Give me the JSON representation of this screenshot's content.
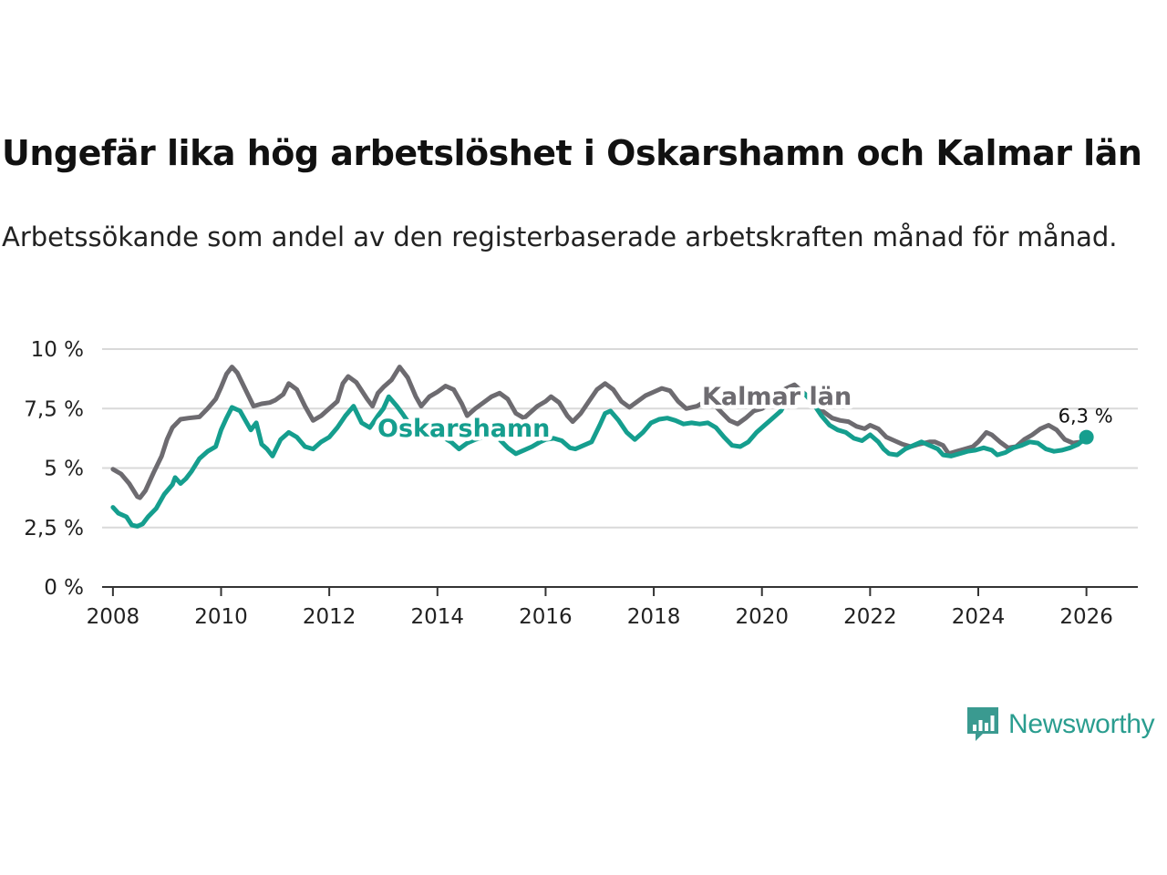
{
  "title": "Ungefär lika hög arbetslöshet i Oskarshamn och Kalmar län",
  "subtitle": "Arbetssökande som andel av den registerbaserade arbetskraften månad för månad.",
  "brand": "Newsworthy",
  "colors": {
    "kalmar": "#6d6b70",
    "oskarshamn": "#159e8e",
    "grid": "#d9d9d9",
    "axis": "#333333"
  },
  "chart_data": {
    "type": "line",
    "xlabel": "",
    "ylabel": "",
    "xlim": [
      2007.8,
      2026.95
    ],
    "ylim": [
      0,
      10
    ],
    "x_ticks": [
      2008,
      2010,
      2012,
      2014,
      2016,
      2018,
      2020,
      2022,
      2024,
      2026
    ],
    "x_tick_labels": [
      "2008",
      "2010",
      "2012",
      "2014",
      "2016",
      "2018",
      "2020",
      "2022",
      "2024",
      "2026"
    ],
    "y_ticks": [
      0,
      2.5,
      5,
      7.5,
      10
    ],
    "y_tick_labels": [
      "0 %",
      "2,5 %",
      "5 %",
      "7,5 %",
      "10 %"
    ],
    "grid": true,
    "last_value_label": "6,3 %",
    "series": [
      {
        "name": "Kalmar län",
        "label": "Kalmar län",
        "points": [
          [
            2008.0,
            4.95
          ],
          [
            2008.15,
            4.75
          ],
          [
            2008.3,
            4.35
          ],
          [
            2008.45,
            3.8
          ],
          [
            2008.5,
            3.75
          ],
          [
            2008.6,
            4.05
          ],
          [
            2008.75,
            4.8
          ],
          [
            2008.9,
            5.5
          ],
          [
            2009.0,
            6.2
          ],
          [
            2009.1,
            6.7
          ],
          [
            2009.25,
            7.05
          ],
          [
            2009.4,
            7.1
          ],
          [
            2009.6,
            7.15
          ],
          [
            2009.75,
            7.5
          ],
          [
            2009.9,
            7.9
          ],
          [
            2010.0,
            8.4
          ],
          [
            2010.1,
            8.95
          ],
          [
            2010.2,
            9.25
          ],
          [
            2010.3,
            9.0
          ],
          [
            2010.45,
            8.3
          ],
          [
            2010.6,
            7.6
          ],
          [
            2010.75,
            7.7
          ],
          [
            2010.9,
            7.75
          ],
          [
            2011.0,
            7.85
          ],
          [
            2011.15,
            8.1
          ],
          [
            2011.25,
            8.55
          ],
          [
            2011.4,
            8.3
          ],
          [
            2011.55,
            7.6
          ],
          [
            2011.7,
            7.0
          ],
          [
            2011.85,
            7.2
          ],
          [
            2012.0,
            7.5
          ],
          [
            2012.15,
            7.8
          ],
          [
            2012.25,
            8.55
          ],
          [
            2012.35,
            8.85
          ],
          [
            2012.5,
            8.6
          ],
          [
            2012.7,
            7.9
          ],
          [
            2012.8,
            7.6
          ],
          [
            2012.9,
            8.15
          ],
          [
            2013.0,
            8.4
          ],
          [
            2013.15,
            8.7
          ],
          [
            2013.3,
            9.25
          ],
          [
            2013.45,
            8.8
          ],
          [
            2013.6,
            8.0
          ],
          [
            2013.7,
            7.6
          ],
          [
            2013.85,
            8.0
          ],
          [
            2014.0,
            8.2
          ],
          [
            2014.15,
            8.45
          ],
          [
            2014.3,
            8.3
          ],
          [
            2014.45,
            7.7
          ],
          [
            2014.55,
            7.2
          ],
          [
            2014.7,
            7.5
          ],
          [
            2014.85,
            7.75
          ],
          [
            2015.0,
            8.0
          ],
          [
            2015.15,
            8.15
          ],
          [
            2015.3,
            7.9
          ],
          [
            2015.45,
            7.3
          ],
          [
            2015.6,
            7.1
          ],
          [
            2015.7,
            7.3
          ],
          [
            2015.85,
            7.6
          ],
          [
            2016.0,
            7.8
          ],
          [
            2016.1,
            8.0
          ],
          [
            2016.25,
            7.75
          ],
          [
            2016.4,
            7.2
          ],
          [
            2016.5,
            6.95
          ],
          [
            2016.65,
            7.3
          ],
          [
            2016.8,
            7.8
          ],
          [
            2016.95,
            8.3
          ],
          [
            2017.1,
            8.55
          ],
          [
            2017.25,
            8.3
          ],
          [
            2017.4,
            7.8
          ],
          [
            2017.55,
            7.55
          ],
          [
            2017.7,
            7.8
          ],
          [
            2017.85,
            8.05
          ],
          [
            2018.0,
            8.2
          ],
          [
            2018.15,
            8.35
          ],
          [
            2018.3,
            8.25
          ],
          [
            2018.45,
            7.8
          ],
          [
            2018.6,
            7.5
          ],
          [
            2018.8,
            7.6
          ],
          [
            2018.95,
            7.8
          ],
          [
            2019.1,
            7.7
          ],
          [
            2019.25,
            7.35
          ],
          [
            2019.4,
            7.0
          ],
          [
            2019.55,
            6.85
          ],
          [
            2019.7,
            7.1
          ],
          [
            2019.85,
            7.4
          ],
          [
            2020.0,
            7.5
          ],
          [
            2020.15,
            7.7
          ],
          [
            2020.3,
            8.15
          ],
          [
            2020.45,
            8.35
          ],
          [
            2020.6,
            8.5
          ],
          [
            2020.75,
            8.2
          ],
          [
            2020.9,
            7.9
          ],
          [
            2021.0,
            7.6
          ],
          [
            2021.15,
            7.35
          ],
          [
            2021.3,
            7.1
          ],
          [
            2021.45,
            7.0
          ],
          [
            2021.6,
            6.95
          ],
          [
            2021.75,
            6.75
          ],
          [
            2021.9,
            6.65
          ],
          [
            2022.0,
            6.8
          ],
          [
            2022.15,
            6.65
          ],
          [
            2022.3,
            6.3
          ],
          [
            2022.45,
            6.15
          ],
          [
            2022.6,
            6.0
          ],
          [
            2022.75,
            5.9
          ],
          [
            2022.9,
            6.0
          ],
          [
            2023.0,
            6.05
          ],
          [
            2023.1,
            6.1
          ],
          [
            2023.2,
            6.1
          ],
          [
            2023.35,
            5.95
          ],
          [
            2023.45,
            5.6
          ],
          [
            2023.6,
            5.7
          ],
          [
            2023.75,
            5.8
          ],
          [
            2023.9,
            5.9
          ],
          [
            2024.0,
            6.1
          ],
          [
            2024.15,
            6.5
          ],
          [
            2024.25,
            6.4
          ],
          [
            2024.4,
            6.1
          ],
          [
            2024.55,
            5.85
          ],
          [
            2024.7,
            5.9
          ],
          [
            2024.85,
            6.2
          ],
          [
            2025.0,
            6.4
          ],
          [
            2025.15,
            6.65
          ],
          [
            2025.3,
            6.8
          ],
          [
            2025.45,
            6.6
          ],
          [
            2025.6,
            6.2
          ],
          [
            2025.75,
            6.05
          ],
          [
            2025.9,
            6.1
          ],
          [
            2026.0,
            6.2
          ]
        ]
      },
      {
        "name": "Oskarshamn",
        "label": "Oskarshamn",
        "points": [
          [
            2008.0,
            3.35
          ],
          [
            2008.1,
            3.1
          ],
          [
            2008.25,
            2.95
          ],
          [
            2008.35,
            2.6
          ],
          [
            2008.45,
            2.55
          ],
          [
            2008.55,
            2.65
          ],
          [
            2008.65,
            2.95
          ],
          [
            2008.8,
            3.3
          ],
          [
            2008.95,
            3.9
          ],
          [
            2009.1,
            4.3
          ],
          [
            2009.15,
            4.6
          ],
          [
            2009.25,
            4.35
          ],
          [
            2009.35,
            4.55
          ],
          [
            2009.45,
            4.85
          ],
          [
            2009.6,
            5.4
          ],
          [
            2009.75,
            5.7
          ],
          [
            2009.9,
            5.9
          ],
          [
            2010.0,
            6.6
          ],
          [
            2010.1,
            7.1
          ],
          [
            2010.2,
            7.55
          ],
          [
            2010.35,
            7.4
          ],
          [
            2010.45,
            7.0
          ],
          [
            2010.55,
            6.6
          ],
          [
            2010.65,
            6.9
          ],
          [
            2010.75,
            6.0
          ],
          [
            2010.85,
            5.8
          ],
          [
            2010.95,
            5.5
          ],
          [
            2011.1,
            6.2
          ],
          [
            2011.25,
            6.5
          ],
          [
            2011.4,
            6.3
          ],
          [
            2011.55,
            5.9
          ],
          [
            2011.7,
            5.8
          ],
          [
            2011.85,
            6.1
          ],
          [
            2012.0,
            6.3
          ],
          [
            2012.15,
            6.7
          ],
          [
            2012.3,
            7.2
          ],
          [
            2012.45,
            7.6
          ],
          [
            2012.6,
            6.9
          ],
          [
            2012.75,
            6.7
          ],
          [
            2012.9,
            7.2
          ],
          [
            2013.0,
            7.5
          ],
          [
            2013.1,
            8.0
          ],
          [
            2013.25,
            7.6
          ],
          [
            2013.35,
            7.3
          ],
          [
            2013.5,
            6.8
          ],
          [
            2013.65,
            6.6
          ],
          [
            2013.8,
            6.5
          ],
          [
            2013.95,
            6.4
          ],
          [
            2014.1,
            6.3
          ],
          [
            2014.25,
            6.1
          ],
          [
            2014.4,
            5.8
          ],
          [
            2014.55,
            6.05
          ],
          [
            2014.7,
            6.2
          ],
          [
            2014.85,
            6.3
          ],
          [
            2015.0,
            6.4
          ],
          [
            2015.15,
            6.2
          ],
          [
            2015.3,
            5.85
          ],
          [
            2015.45,
            5.6
          ],
          [
            2015.6,
            5.75
          ],
          [
            2015.75,
            5.9
          ],
          [
            2015.9,
            6.1
          ],
          [
            2016.0,
            6.2
          ],
          [
            2016.15,
            6.25
          ],
          [
            2016.3,
            6.15
          ],
          [
            2016.45,
            5.85
          ],
          [
            2016.55,
            5.8
          ],
          [
            2016.7,
            5.95
          ],
          [
            2016.85,
            6.1
          ],
          [
            2017.0,
            6.8
          ],
          [
            2017.1,
            7.3
          ],
          [
            2017.2,
            7.4
          ],
          [
            2017.35,
            7.0
          ],
          [
            2017.5,
            6.5
          ],
          [
            2017.65,
            6.2
          ],
          [
            2017.8,
            6.5
          ],
          [
            2017.95,
            6.9
          ],
          [
            2018.1,
            7.05
          ],
          [
            2018.25,
            7.1
          ],
          [
            2018.4,
            7.0
          ],
          [
            2018.55,
            6.85
          ],
          [
            2018.7,
            6.9
          ],
          [
            2018.85,
            6.85
          ],
          [
            2019.0,
            6.9
          ],
          [
            2019.15,
            6.7
          ],
          [
            2019.3,
            6.3
          ],
          [
            2019.45,
            5.95
          ],
          [
            2019.6,
            5.9
          ],
          [
            2019.75,
            6.1
          ],
          [
            2019.9,
            6.5
          ],
          [
            2020.05,
            6.8
          ],
          [
            2020.2,
            7.1
          ],
          [
            2020.35,
            7.4
          ],
          [
            2020.5,
            8.0
          ],
          [
            2020.65,
            8.3
          ],
          [
            2020.8,
            8.1
          ],
          [
            2020.95,
            7.7
          ],
          [
            2021.1,
            7.2
          ],
          [
            2021.25,
            6.8
          ],
          [
            2021.4,
            6.6
          ],
          [
            2021.55,
            6.5
          ],
          [
            2021.7,
            6.25
          ],
          [
            2021.85,
            6.15
          ],
          [
            2022.0,
            6.4
          ],
          [
            2022.15,
            6.1
          ],
          [
            2022.25,
            5.8
          ],
          [
            2022.35,
            5.6
          ],
          [
            2022.5,
            5.55
          ],
          [
            2022.65,
            5.8
          ],
          [
            2022.8,
            5.95
          ],
          [
            2022.95,
            6.1
          ],
          [
            2023.1,
            5.95
          ],
          [
            2023.25,
            5.8
          ],
          [
            2023.35,
            5.55
          ],
          [
            2023.5,
            5.5
          ],
          [
            2023.65,
            5.6
          ],
          [
            2023.8,
            5.7
          ],
          [
            2023.95,
            5.75
          ],
          [
            2024.1,
            5.85
          ],
          [
            2024.25,
            5.75
          ],
          [
            2024.35,
            5.55
          ],
          [
            2024.5,
            5.65
          ],
          [
            2024.65,
            5.85
          ],
          [
            2024.8,
            5.95
          ],
          [
            2024.95,
            6.1
          ],
          [
            2025.1,
            6.05
          ],
          [
            2025.25,
            5.8
          ],
          [
            2025.4,
            5.7
          ],
          [
            2025.55,
            5.75
          ],
          [
            2025.7,
            5.85
          ],
          [
            2025.85,
            6.0
          ],
          [
            2026.0,
            6.3
          ]
        ]
      }
    ]
  }
}
